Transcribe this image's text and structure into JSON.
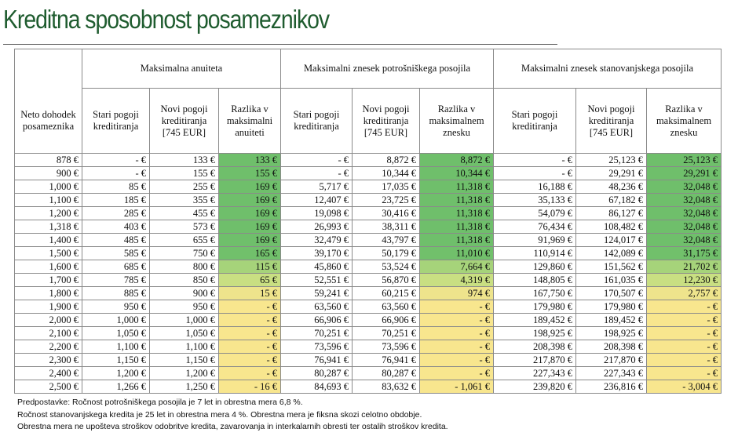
{
  "title": "Kreditna sposobnost posameznikov",
  "table": {
    "groups": [
      "Maksimalna anuiteta",
      "Maksimalni znesek potrošniškega posojila",
      "Maksimalni znesek stanovanjskega posojila"
    ],
    "first_header": "Neto dohodek posameznika",
    "subheaders": [
      "Stari pogoji kreditiranja",
      "Novi pogoji kreditiranja [745 EUR]",
      "Razlika v maksimalni anuiteti",
      "Stari pogoji kreditiranja",
      "Novi pogoji kreditiranja [745 EUR]",
      "Razlika v maksimalnem znesku",
      "Stari pogoji kreditiranja",
      "Novi pogoji kreditiranja [745 EUR]",
      "Razlika v maksimalnem znesku"
    ],
    "highlight_colors": [
      "#6fbf6b",
      "#6fbf6b",
      "#6fbf6b",
      "#6fbf6b",
      "#6fbf6b",
      "#6fbf6b",
      "#6fbf6b",
      "#71c06b",
      "#a6d37a",
      "#c9df82",
      "#eee48c",
      "#f8e68e",
      "#f8e68e",
      "#f8e68e",
      "#f8e68e",
      "#f8e68e",
      "#f8e68e",
      "#f8e68e"
    ],
    "rows": [
      [
        "878 €",
        "- €",
        "133 €",
        "133 €",
        "- €",
        "8,872 €",
        "8,872 €",
        "- €",
        "25,123 €",
        "25,123 €"
      ],
      [
        "900 €",
        "- €",
        "155 €",
        "155 €",
        "- €",
        "10,344 €",
        "10,344 €",
        "- €",
        "29,291 €",
        "29,291 €"
      ],
      [
        "1,000 €",
        "85 €",
        "255 €",
        "169 €",
        "5,717 €",
        "17,035 €",
        "11,318 €",
        "16,188 €",
        "48,236 €",
        "32,048 €"
      ],
      [
        "1,100 €",
        "185 €",
        "355 €",
        "169 €",
        "12,407 €",
        "23,725 €",
        "11,318 €",
        "35,133 €",
        "67,182 €",
        "32,048 €"
      ],
      [
        "1,200 €",
        "285 €",
        "455 €",
        "169 €",
        "19,098 €",
        "30,416 €",
        "11,318 €",
        "54,079 €",
        "86,127 €",
        "32,048 €"
      ],
      [
        "1,318 €",
        "403 €",
        "573 €",
        "169 €",
        "26,993 €",
        "38,311 €",
        "11,318 €",
        "76,434 €",
        "108,482 €",
        "32,048 €"
      ],
      [
        "1,400 €",
        "485 €",
        "655 €",
        "169 €",
        "32,479 €",
        "43,797 €",
        "11,318 €",
        "91,969 €",
        "124,017 €",
        "32,048 €"
      ],
      [
        "1,500 €",
        "585 €",
        "750 €",
        "165 €",
        "39,170 €",
        "50,179 €",
        "11,010 €",
        "110,914 €",
        "142,089 €",
        "31,175 €"
      ],
      [
        "1,600 €",
        "685 €",
        "800 €",
        "115 €",
        "45,860 €",
        "53,524 €",
        "7,664 €",
        "129,860 €",
        "151,562 €",
        "21,702 €"
      ],
      [
        "1,700 €",
        "785 €",
        "850 €",
        "65 €",
        "52,551 €",
        "56,870 €",
        "4,319 €",
        "148,805 €",
        "161,035 €",
        "12,230 €"
      ],
      [
        "1,800 €",
        "885 €",
        "900 €",
        "15 €",
        "59,241 €",
        "60,215 €",
        "974 €",
        "167,750 €",
        "170,507 €",
        "2,757 €"
      ],
      [
        "1,900 €",
        "950 €",
        "950 €",
        "- €",
        "63,560 €",
        "63,560 €",
        "- €",
        "179,980 €",
        "179,980 €",
        "- €"
      ],
      [
        "2,000 €",
        "1,000 €",
        "1,000 €",
        "- €",
        "66,906 €",
        "66,906 €",
        "- €",
        "189,452 €",
        "189,452 €",
        "- €"
      ],
      [
        "2,100 €",
        "1,050 €",
        "1,050 €",
        "- €",
        "70,251 €",
        "70,251 €",
        "- €",
        "198,925 €",
        "198,925 €",
        "- €"
      ],
      [
        "2,200 €",
        "1,100 €",
        "1,100 €",
        "- €",
        "73,596 €",
        "73,596 €",
        "- €",
        "208,398 €",
        "208,398 €",
        "- €"
      ],
      [
        "2,300 €",
        "1,150 €",
        "1,150 €",
        "- €",
        "76,941 €",
        "76,941 €",
        "- €",
        "217,870 €",
        "217,870 €",
        "- €"
      ],
      [
        "2,400 €",
        "1,200 €",
        "1,200 €",
        "- €",
        "80,287 €",
        "80,287 €",
        "- €",
        "227,343 €",
        "227,343 €",
        "- €"
      ],
      [
        "2,500 €",
        "1,266 €",
        "1,250 €",
        "- 16 €",
        "84,693 €",
        "83,632 €",
        "- 1,061 €",
        "239,820 €",
        "236,816 €",
        "- 3,004 €"
      ]
    ]
  },
  "notes": [
    "Predpostavke: Ročnost potrošniškega posojila je 7 let in obrestna mera 6,8 %.",
    "Ročnost stanovanjskega kredita je 25 let in obrestna mera 4 %. Obrestna mera je fiksna skozi celotno obdobje.",
    "Obrestna mera ne upošteva stroškov odobritve kredita, zavarovanja in interkalarnih obresti ter ostalih stroškov kredita."
  ]
}
